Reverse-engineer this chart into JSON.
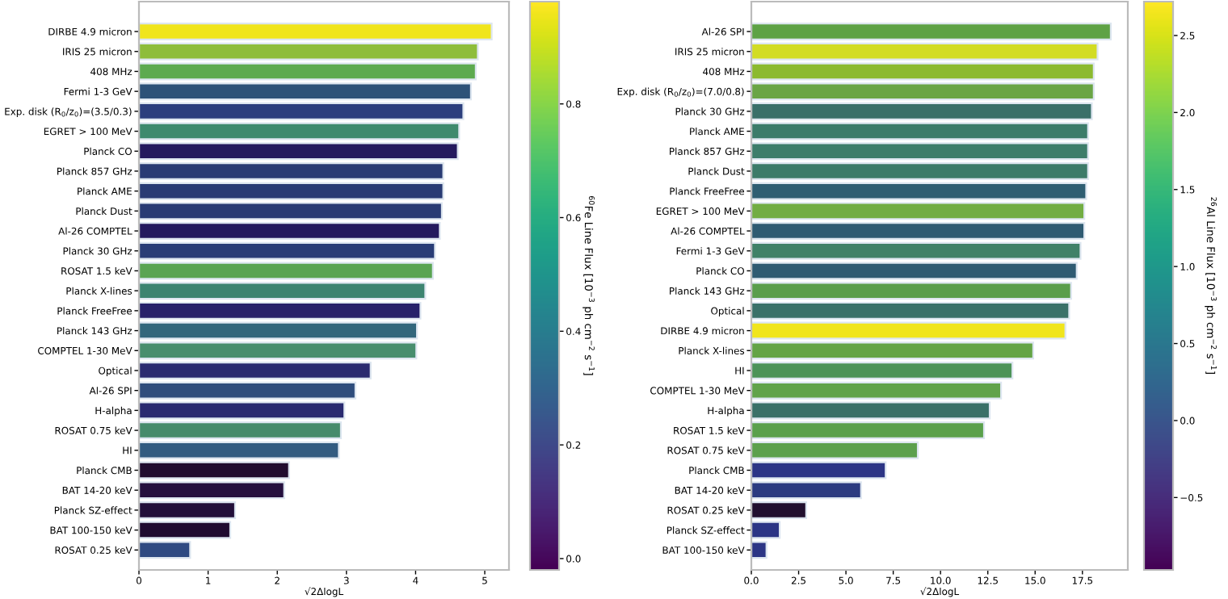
{
  "chart_data": [
    {
      "type": "bar",
      "orientation": "horizontal",
      "xlabel": "√2ΔlogL",
      "clabel": "$^{60}$Fe Line Flux [10$^{−3}$ ph cm$^{−2}$ s$^{−1}$]",
      "categories": [
        "DIRBE 4.9 micron",
        "IRIS 25 micron",
        "408 MHz",
        "Fermi 1-3 GeV",
        "Exp. disk (R$_{0}$/z$_{0}$)=(3.5/0.3)",
        "EGRET > 100 MeV",
        "Planck CO",
        "Planck 857 GHz",
        "Planck AME",
        "Planck Dust",
        "Al-26 COMPTEL",
        "Planck 30 GHz",
        "ROSAT 1.5 keV",
        "Planck X-lines",
        "Planck FreeFree",
        "Planck 143 GHz",
        "COMPTEL 1-30 MeV",
        "Optical",
        "Al-26 SPI",
        "H-alpha",
        "ROSAT 0.75 keV",
        "HI",
        "Planck CMB",
        "BAT 14-20 keV",
        "Planck SZ-effect",
        "BAT 100-150 keV",
        "ROSAT 0.25 keV"
      ],
      "values": [
        5.1,
        4.9,
        4.87,
        4.8,
        4.69,
        4.63,
        4.61,
        4.4,
        4.4,
        4.38,
        4.35,
        4.28,
        4.25,
        4.14,
        4.07,
        4.02,
        4.01,
        3.35,
        3.13,
        2.97,
        2.92,
        2.89,
        2.17,
        2.1,
        1.39,
        1.32,
        0.74
      ],
      "colors": [
        "#f0e51c",
        "#8ebd3b",
        "#5daa4f",
        "#2d5278",
        "#2c3f7d",
        "#3e8a6e",
        "#241a5e",
        "#293b74",
        "#293b74",
        "#293b74",
        "#241a5e",
        "#2a3d76",
        "#5aa452",
        "#3c8470",
        "#27216a",
        "#33677c",
        "#488e6e",
        "#2a2b70",
        "#2f4d7c",
        "#2a2a70",
        "#468b6b",
        "#325b80",
        "#210d2f",
        "#25103e",
        "#23103a",
        "#200b30",
        "#2f4a82"
      ],
      "xlim": [
        0,
        5.35
      ],
      "xticks": [
        0,
        1,
        2,
        3,
        4,
        5
      ],
      "clim": [
        -0.02,
        0.98
      ],
      "cticks": [
        {
          "value": 0,
          "label": "0.0"
        },
        {
          "value": 0.2,
          "label": "0.2"
        },
        {
          "value": 0.4,
          "label": "0.4"
        },
        {
          "value": 0.6,
          "label": "0.6"
        },
        {
          "value": 0.8,
          "label": "0.8"
        }
      ]
    },
    {
      "type": "bar",
      "orientation": "horizontal",
      "xlabel": "√2ΔlogL",
      "clabel": "$^{26}$Al Line Flux [10$^{−3}$ ph cm$^{−2}$ s$^{−1}$]",
      "categories": [
        "Al-26 SPI",
        "IRIS 25 micron",
        "408 MHz",
        "Exp. disk (R$_{0}$/z$_{0}$)=(7.0/0.8)",
        "Planck 30 GHz",
        "Planck AME",
        "Planck 857 GHz",
        "Planck Dust",
        "Planck FreeFree",
        "EGRET > 100 MeV",
        "Al-26 COMPTEL",
        "Fermi 1-3 GeV",
        "Planck CO",
        "Planck 143 GHz",
        "Optical",
        "DIRBE 4.9 micron",
        "Planck X-lines",
        "HI",
        "COMPTEL 1-30 MeV",
        "H-alpha",
        "ROSAT 1.5 keV",
        "ROSAT 0.75 keV",
        "Planck CMB",
        "BAT 14-20 keV",
        "ROSAT 0.25 keV",
        "Planck SZ-effect",
        "BAT 100-150 keV"
      ],
      "values": [
        19.0,
        18.3,
        18.1,
        18.1,
        18.0,
        17.8,
        17.8,
        17.8,
        17.7,
        17.6,
        17.6,
        17.4,
        17.2,
        16.9,
        16.8,
        16.6,
        14.9,
        13.8,
        13.2,
        12.6,
        12.3,
        8.8,
        7.1,
        5.8,
        2.9,
        1.5,
        0.8
      ],
      "colors": [
        "#5ea245",
        "#d2dc24",
        "#8cba2f",
        "#6aa545",
        "#3a7069",
        "#3c7c6a",
        "#3d7d6a",
        "#3c7b69",
        "#2f5e72",
        "#72ad43",
        "#2f5b72",
        "#408168",
        "#2f5b72",
        "#5a9e4c",
        "#3a7169",
        "#f0e51c",
        "#64a446",
        "#4c9358",
        "#61a34a",
        "#3a7068",
        "#5aa04c",
        "#5ca04d",
        "#2c3585",
        "#2c3b80",
        "#22102f",
        "#2c3585",
        "#2c3585"
      ],
      "xlim": [
        0,
        19.9
      ],
      "xticks": [
        {
          "value": 0,
          "label": "0.0"
        },
        2.5,
        {
          "value": 5,
          "label": "5.0"
        },
        7.5,
        {
          "value": 10,
          "label": "10.0"
        },
        12.5,
        {
          "value": 15,
          "label": "15.0"
        },
        17.5
      ],
      "clim": [
        -0.97,
        2.72
      ],
      "cticks": [
        {
          "value": -0.5,
          "label": "−0.5"
        },
        {
          "value": 0,
          "label": "0.0"
        },
        {
          "value": 0.5,
          "label": "0.5"
        },
        {
          "value": 1,
          "label": "1.0"
        },
        {
          "value": 1.5,
          "label": "1.5"
        },
        {
          "value": 2,
          "label": "2.0"
        },
        {
          "value": 2.5,
          "label": "2.5"
        }
      ]
    }
  ]
}
